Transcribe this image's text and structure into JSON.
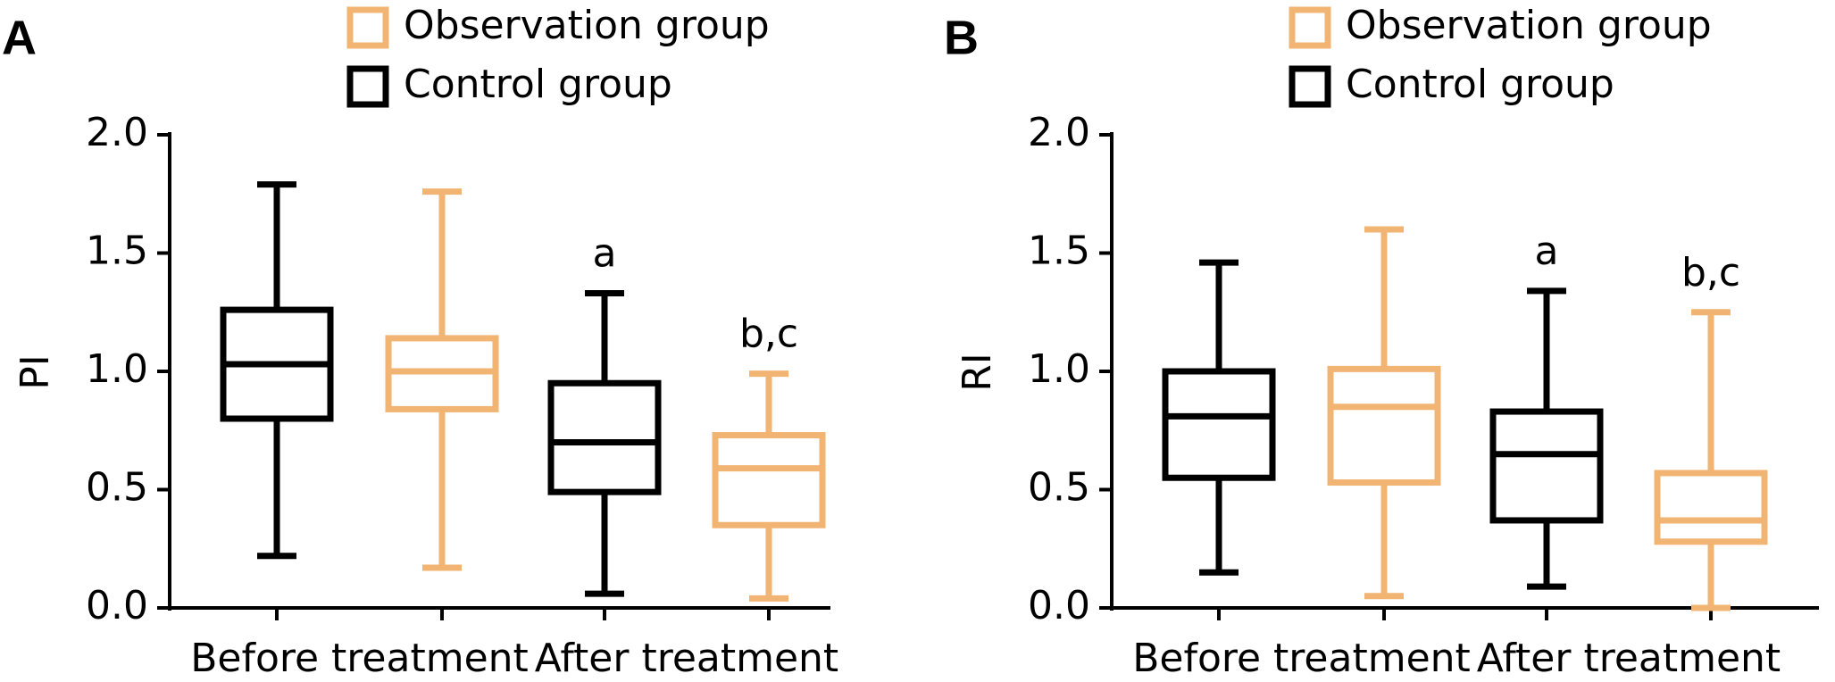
{
  "chart_data": [
    {
      "type": "box",
      "panel_label": "A",
      "ylabel": "PI",
      "categories": [
        "Before treatment",
        "After treatment"
      ],
      "ylim": [
        0,
        2
      ],
      "yticks": [
        {
          "value": 0,
          "label": "0.0"
        },
        0.5,
        {
          "value": 1,
          "label": "1.0"
        },
        1.5,
        {
          "value": 2,
          "label": "2.0"
        }
      ],
      "series": [
        {
          "name": "Control group",
          "color": "#000000",
          "values": [
            {
              "min": 0.22,
              "q1": 0.8,
              "median": 1.03,
              "q3": 1.26,
              "max": 1.79
            },
            {
              "min": 0.06,
              "q1": 0.49,
              "median": 0.7,
              "q3": 0.95,
              "max": 1.33
            }
          ],
          "annotations": [
            null,
            "a"
          ]
        },
        {
          "name": "Observation group",
          "color": "#f2b472",
          "values": [
            {
              "min": 0.17,
              "q1": 0.84,
              "median": 1.0,
              "q3": 1.14,
              "max": 1.76
            },
            {
              "min": 0.04,
              "q1": 0.35,
              "median": 0.59,
              "q3": 0.73,
              "max": 0.99
            }
          ],
          "annotations": [
            null,
            "b,c"
          ]
        }
      ]
    },
    {
      "type": "box",
      "panel_label": "B",
      "ylabel": "RI",
      "categories": [
        "Before treatment",
        "After treatment"
      ],
      "ylim": [
        0,
        2
      ],
      "yticks": [
        {
          "value": 0,
          "label": "0.0"
        },
        0.5,
        {
          "value": 1,
          "label": "1.0"
        },
        1.5,
        {
          "value": 2,
          "label": "2.0"
        }
      ],
      "series": [
        {
          "name": "Control group",
          "color": "#000000",
          "values": [
            {
              "min": 0.15,
              "q1": 0.55,
              "median": 0.81,
              "q3": 1.0,
              "max": 1.46
            },
            {
              "min": 0.09,
              "q1": 0.37,
              "median": 0.65,
              "q3": 0.83,
              "max": 1.34
            }
          ],
          "annotations": [
            null,
            "a"
          ]
        },
        {
          "name": "Observation group",
          "color": "#f2b472",
          "values": [
            {
              "min": 0.05,
              "q1": 0.53,
              "median": 0.85,
              "q3": 1.01,
              "max": 1.6
            },
            {
              "min": 0.0,
              "q1": 0.28,
              "median": 0.37,
              "q3": 0.57,
              "max": 1.25
            }
          ],
          "annotations": [
            null,
            "b,c"
          ]
        }
      ]
    }
  ]
}
